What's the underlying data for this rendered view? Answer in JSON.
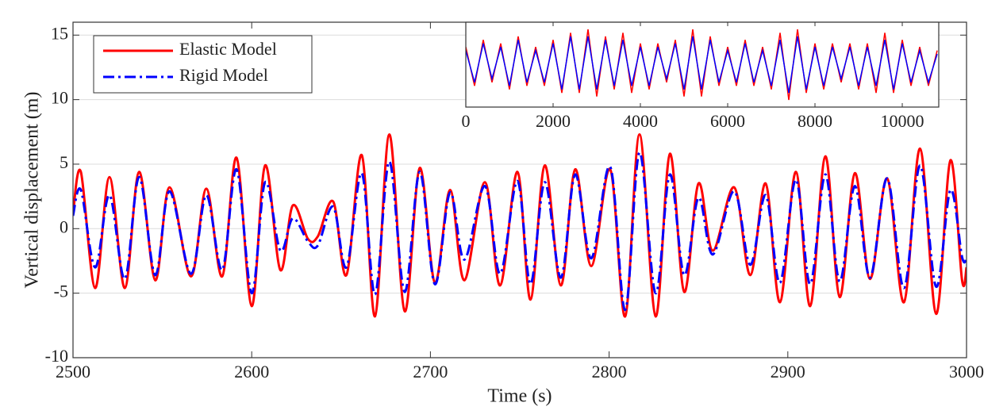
{
  "chart_data": [
    {
      "type": "line",
      "xlabel": "Time (s)",
      "ylabel": "Vertical displacement (m)",
      "xlim": [
        2500,
        3000
      ],
      "xticks": [
        2500,
        2600,
        2700,
        2800,
        2900,
        3000
      ],
      "ylim": [
        -10,
        16
      ],
      "yticks": [
        -10,
        -5,
        0,
        5,
        10,
        15
      ],
      "grid": true,
      "legend": "upper left",
      "x": [
        2500,
        2504.4,
        2512.4,
        2520.4,
        2529,
        2537,
        2546,
        2554,
        2566,
        2574.6,
        2583.5,
        2591.5,
        2600,
        2607.5,
        2616,
        2623,
        2631.5,
        2637,
        2645.6,
        2653,
        2661.6,
        2669,
        2677,
        2685.6,
        2694,
        2702.5,
        2711,
        2719,
        2730.5,
        2739,
        2748.7,
        2756,
        2764,
        2773,
        2781,
        2790,
        2800.6,
        2809,
        2817,
        2826,
        2834,
        2842,
        2850,
        2858,
        2870,
        2879,
        2887.6,
        2895.6,
        2904.5,
        2912.5,
        2921,
        2929,
        2937.5,
        2946,
        2955.6,
        2965,
        2974,
        2983,
        2991,
        2997.5,
        3000
      ],
      "series": [
        {
          "name": "Elastic Model",
          "color": "#ff0000",
          "style": "solid",
          "values": [
            1.2,
            4.4,
            -4.6,
            4.0,
            -4.6,
            4.4,
            -4.0,
            3.2,
            -3.7,
            3.1,
            -3.7,
            5.5,
            -6.0,
            4.9,
            -3.2,
            1.8,
            -0.8,
            -0.6,
            2.1,
            -3.6,
            5.7,
            -6.8,
            7.3,
            -6.4,
            4.7,
            -4.2,
            3.0,
            -4.0,
            3.6,
            -4.4,
            4.4,
            -5.5,
            4.9,
            -4.4,
            4.6,
            -2.9,
            4.6,
            -6.8,
            7.3,
            -6.8,
            5.8,
            -4.9,
            3.5,
            -1.7,
            3.2,
            -3.6,
            3.5,
            -5.7,
            4.4,
            -6.0,
            5.6,
            -5.3,
            4.3,
            -3.9,
            3.9,
            -5.7,
            6.2,
            -6.6,
            5.3,
            -4.0,
            -3.0
          ]
        },
        {
          "name": "Rigid Model",
          "color": "#0000ff",
          "style": "dashdot",
          "values": [
            1.0,
            3.0,
            -3.0,
            2.6,
            -3.9,
            4.0,
            -3.6,
            2.9,
            -3.5,
            2.6,
            -3.2,
            4.6,
            -5.0,
            3.6,
            -1.7,
            0.8,
            -1.0,
            -1.3,
            1.7,
            -3.0,
            4.3,
            -5.1,
            5.2,
            -4.9,
            4.4,
            -4.3,
            2.8,
            -2.4,
            3.3,
            -3.5,
            3.7,
            -4.3,
            3.6,
            -3.8,
            4.2,
            -2.3,
            4.8,
            -6.3,
            5.9,
            -5.0,
            4.2,
            -3.6,
            2.4,
            -2.0,
            2.9,
            -2.8,
            2.6,
            -4.2,
            3.8,
            -4.3,
            4.2,
            -4.1,
            3.3,
            -3.8,
            3.9,
            -4.6,
            4.9,
            -4.5,
            3.0,
            -2.2,
            -2.3
          ]
        }
      ]
    },
    {
      "type": "line",
      "xlim": [
        0,
        10836
      ],
      "xticks": [
        0,
        2000,
        4000,
        6000,
        8000,
        10000
      ],
      "ylim": [
        -12,
        12
      ],
      "x": [
        0,
        200,
        400,
        600,
        800,
        1000,
        1200,
        1400,
        1600,
        1800,
        2000,
        2200,
        2400,
        2600,
        2800,
        3000,
        3200,
        3400,
        3600,
        3800,
        4000,
        4200,
        4400,
        4600,
        4800,
        5000,
        5200,
        5400,
        5600,
        5800,
        6000,
        6200,
        6400,
        6600,
        6800,
        7000,
        7200,
        7400,
        7600,
        7800,
        8000,
        8200,
        8400,
        8600,
        8800,
        9000,
        9200,
        9400,
        9600,
        9800,
        10000,
        10200,
        10400,
        10600,
        10800
      ],
      "series": [
        {
          "color": "#ff0000",
          "style": "solid",
          "values": [
            5,
            -6,
            7,
            -5,
            6,
            -7,
            8,
            -6,
            5,
            -6,
            7,
            -8,
            9,
            -8,
            10,
            -9,
            8,
            -7,
            9,
            -8,
            6,
            -7,
            6,
            -5,
            7,
            -9,
            10,
            -9,
            8,
            -6,
            5,
            -6,
            7,
            -6,
            5,
            -7,
            9,
            -10,
            10,
            -8,
            6,
            -7,
            6,
            -5,
            6,
            -7,
            6,
            -8,
            9,
            -8,
            7,
            -6,
            5,
            -6,
            4
          ]
        },
        {
          "color": "#0000ff",
          "style": "solid",
          "values": [
            4,
            -5,
            6,
            -4,
            5,
            -6,
            7,
            -5,
            4,
            -5,
            6,
            -7,
            8,
            -7,
            8,
            -7,
            7,
            -6,
            7,
            -6,
            5,
            -6,
            5,
            -4,
            6,
            -7,
            8,
            -7,
            7,
            -5,
            4,
            -5,
            6,
            -5,
            4,
            -6,
            7,
            -8,
            8,
            -7,
            5,
            -6,
            5,
            -4,
            5,
            -6,
            5,
            -6,
            7,
            -7,
            6,
            -5,
            4,
            -5,
            3
          ]
        }
      ]
    }
  ]
}
